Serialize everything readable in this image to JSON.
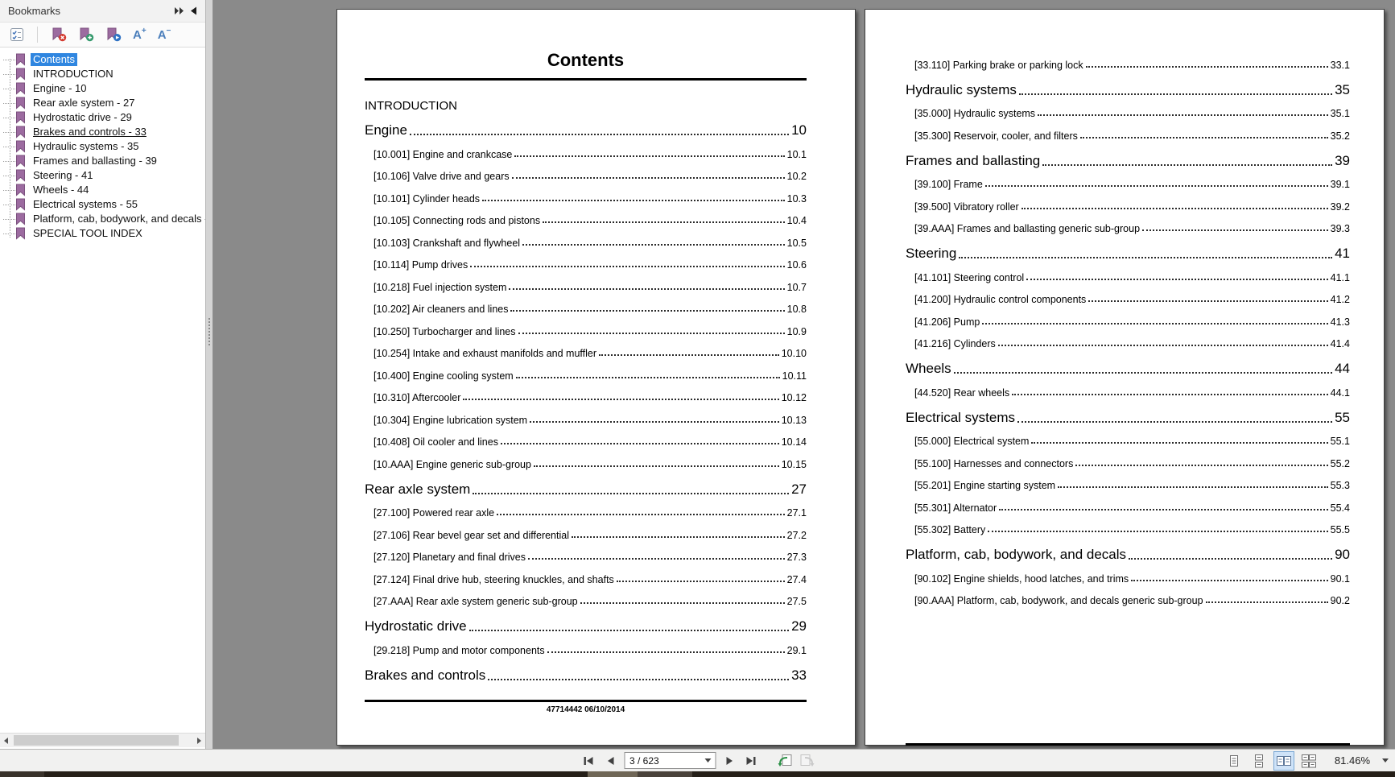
{
  "panel": {
    "title": "Bookmarks",
    "toolbar_icons": [
      "bookmark-options-icon",
      "delete-bookmark-icon",
      "new-bookmark-icon",
      "locate-bookmark-icon",
      "increase-text-size-icon",
      "decrease-text-size-icon"
    ],
    "items": [
      {
        "label": "Contents",
        "selected": true
      },
      {
        "label": "INTRODUCTION"
      },
      {
        "label": "Engine - 10"
      },
      {
        "label": "Rear axle system - 27"
      },
      {
        "label": "Hydrostatic drive - 29"
      },
      {
        "label": "Brakes and controls - 33",
        "underlined": true
      },
      {
        "label": "Hydraulic systems - 35"
      },
      {
        "label": "Frames and ballasting - 39"
      },
      {
        "label": "Steering - 41"
      },
      {
        "label": "Wheels - 44"
      },
      {
        "label": "Electrical systems - 55"
      },
      {
        "label": "Platform, cab, bodywork, and decals -"
      },
      {
        "label": "SPECIAL TOOL INDEX"
      }
    ]
  },
  "icons": {
    "font_increase": {
      "base": "A",
      "mod": "+"
    },
    "font_decrease": {
      "base": "A",
      "mod": "−"
    }
  },
  "document": {
    "footer": "47714442 06/10/2014",
    "left_page": {
      "title": "Contents",
      "rows": [
        {
          "t": "plain",
          "label": "INTRODUCTION"
        },
        {
          "t": "ch",
          "label": "Engine",
          "page": "10"
        },
        {
          "t": "sub",
          "label": "[10.001] Engine and crankcase ",
          "page": "10.1"
        },
        {
          "t": "sub",
          "label": "[10.106] Valve drive and gears ",
          "page": "10.2"
        },
        {
          "t": "sub",
          "label": "[10.101] Cylinder heads ",
          "page": "10.3"
        },
        {
          "t": "sub",
          "label": "[10.105] Connecting rods and pistons",
          "page": "10.4"
        },
        {
          "t": "sub",
          "label": "[10.103] Crankshaft and flywheel",
          "page": "10.5"
        },
        {
          "t": "sub",
          "label": "[10.114] Pump drives ",
          "page": "10.6"
        },
        {
          "t": "sub",
          "label": "[10.218] Fuel injection system",
          "page": "10.7"
        },
        {
          "t": "sub",
          "label": "[10.202] Air cleaners and lines ",
          "page": "10.8"
        },
        {
          "t": "sub",
          "label": "[10.250] Turbocharger and lines",
          "page": "10.9"
        },
        {
          "t": "sub",
          "label": "[10.254] Intake and exhaust manifolds and muffler ",
          "page": "10.10"
        },
        {
          "t": "sub",
          "label": "[10.400] Engine cooling system ",
          "page": "10.11"
        },
        {
          "t": "sub",
          "label": "[10.310] Aftercooler",
          "page": "10.12"
        },
        {
          "t": "sub",
          "label": "[10.304] Engine lubrication system",
          "page": "10.13"
        },
        {
          "t": "sub",
          "label": "[10.408] Oil cooler and lines",
          "page": "10.14"
        },
        {
          "t": "sub",
          "label": "[10.AAA] Engine generic sub-group",
          "page": "10.15"
        },
        {
          "t": "ch",
          "label": "Rear axle system",
          "page": "27"
        },
        {
          "t": "sub",
          "label": "[27.100] Powered rear axle",
          "page": "27.1"
        },
        {
          "t": "sub",
          "label": "[27.106] Rear bevel gear set and differential",
          "page": "27.2"
        },
        {
          "t": "sub",
          "label": "[27.120] Planetary and final drives ",
          "page": "27.3"
        },
        {
          "t": "sub",
          "label": "[27.124] Final drive hub, steering knuckles, and shafts ",
          "page": "27.4"
        },
        {
          "t": "sub",
          "label": "[27.AAA] Rear axle system generic sub-group",
          "page": "27.5"
        },
        {
          "t": "ch",
          "label": "Hydrostatic drive",
          "page": "29"
        },
        {
          "t": "sub",
          "label": "[29.218] Pump and motor components",
          "page": "29.1"
        },
        {
          "t": "ch",
          "label": "Brakes and controls ",
          "page": "33"
        }
      ]
    },
    "right_page": {
      "rows": [
        {
          "t": "sub",
          "label": "[33.110] Parking brake or parking lock ",
          "page": "33.1"
        },
        {
          "t": "ch",
          "label": "Hydraulic systems",
          "page": "35"
        },
        {
          "t": "sub",
          "label": "[35.000] Hydraulic systems",
          "page": "35.1"
        },
        {
          "t": "sub",
          "label": "[35.300] Reservoir, cooler, and filters",
          "page": "35.2"
        },
        {
          "t": "ch",
          "label": "Frames and ballasting ",
          "page": "39"
        },
        {
          "t": "sub",
          "label": "[39.100] Frame ",
          "page": "39.1"
        },
        {
          "t": "sub",
          "label": "[39.500] Vibratory roller",
          "page": "39.2"
        },
        {
          "t": "sub",
          "label": "[39.AAA] Frames and ballasting generic sub-group",
          "page": "39.3"
        },
        {
          "t": "ch",
          "label": "Steering",
          "page": "41"
        },
        {
          "t": "sub",
          "label": "[41.101] Steering control ",
          "page": "41.1"
        },
        {
          "t": "sub",
          "label": "[41.200] Hydraulic control components",
          "page": "41.2"
        },
        {
          "t": "sub",
          "label": "[41.206] Pump",
          "page": "41.3"
        },
        {
          "t": "sub",
          "label": "[41.216] Cylinders ",
          "page": "41.4"
        },
        {
          "t": "ch",
          "label": "Wheels",
          "page": "44"
        },
        {
          "t": "sub",
          "label": "[44.520] Rear wheels",
          "page": "44.1"
        },
        {
          "t": "ch",
          "label": "Electrical systems ",
          "page": "55"
        },
        {
          "t": "sub",
          "label": "[55.000] Electrical system ",
          "page": "55.1"
        },
        {
          "t": "sub",
          "label": "[55.100] Harnesses and connectors",
          "page": "55.2"
        },
        {
          "t": "sub",
          "label": "[55.201] Engine starting system ",
          "page": "55.3"
        },
        {
          "t": "sub",
          "label": "[55.301] Alternator",
          "page": "55.4"
        },
        {
          "t": "sub",
          "label": "[55.302] Battery",
          "page": "55.5"
        },
        {
          "t": "ch",
          "label": "Platform, cab, bodywork, and decals ",
          "page": "90"
        },
        {
          "t": "sub",
          "label": "[90.102] Engine shields, hood latches, and trims ",
          "page": "90.1"
        },
        {
          "t": "sub",
          "label": "[90.AAA] Platform, cab, bodywork, and decals generic sub-group",
          "page": "90.2"
        }
      ]
    }
  },
  "statusbar": {
    "page_field": "3 / 623",
    "zoom_level": "81.46%"
  }
}
